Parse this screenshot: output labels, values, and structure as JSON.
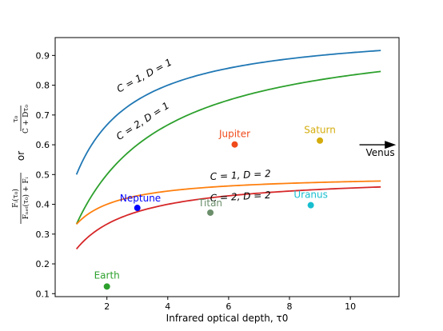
{
  "chart_data": {
    "type": "line",
    "xlabel": "Infrared optical depth, τ0",
    "ylabel": {
      "expr1_num": "τ₀",
      "expr1_den": "C + Dτ₀",
      "or": "or",
      "expr2_num": "Fᵢ(τ₀)",
      "expr2_den": "Fₙₑₜ(τ₀) + Fᵢ"
    },
    "xlim": [
      0.3,
      11.6
    ],
    "ylim": [
      0.09,
      0.96
    ],
    "x_ticks": [
      2,
      4,
      6,
      8,
      10
    ],
    "y_ticks": [
      0.1,
      0.2,
      0.3,
      0.4,
      0.5,
      0.6,
      0.7,
      0.8,
      0.9
    ],
    "grid": false,
    "series": [
      {
        "name": "C = 1, D = 1",
        "C": 1,
        "D": 1,
        "color": "#1f77b4",
        "x_range": [
          1,
          11
        ],
        "x": [
          1,
          2,
          3,
          4,
          5,
          6,
          7,
          8,
          9,
          10,
          11
        ],
        "y": [
          0.5,
          0.667,
          0.75,
          0.8,
          0.833,
          0.857,
          0.875,
          0.889,
          0.9,
          0.909,
          0.917
        ]
      },
      {
        "name": "C = 2, D = 1",
        "C": 2,
        "D": 1,
        "color": "#2ca02c",
        "x_range": [
          1,
          11
        ],
        "x": [
          1,
          2,
          3,
          4,
          5,
          6,
          7,
          8,
          9,
          10,
          11
        ],
        "y": [
          0.333,
          0.5,
          0.6,
          0.667,
          0.714,
          0.75,
          0.778,
          0.8,
          0.818,
          0.833,
          0.846
        ]
      },
      {
        "name": "C = 1, D = 2",
        "C": 1,
        "D": 2,
        "color": "#ff7f0e",
        "x_range": [
          1,
          11
        ],
        "x": [
          1,
          2,
          3,
          4,
          5,
          6,
          7,
          8,
          9,
          10,
          11
        ],
        "y": [
          0.333,
          0.4,
          0.429,
          0.444,
          0.455,
          0.462,
          0.467,
          0.471,
          0.474,
          0.476,
          0.478
        ]
      },
      {
        "name": "C = 2, D = 2",
        "C": 2,
        "D": 2,
        "color": "#d62728",
        "x_range": [
          1,
          11
        ],
        "x": [
          1,
          2,
          3,
          4,
          5,
          6,
          7,
          8,
          9,
          10,
          11
        ],
        "y": [
          0.25,
          0.333,
          0.375,
          0.4,
          0.417,
          0.429,
          0.438,
          0.444,
          0.45,
          0.455,
          0.458
        ]
      }
    ],
    "curve_labels": [
      {
        "text": "C = 1, D = 1",
        "x": 2.4,
        "y": 0.775,
        "angle": -28
      },
      {
        "text": "C = 2, D = 1",
        "x": 2.4,
        "y": 0.615,
        "angle": -33
      },
      {
        "text": "C = 1, D = 2",
        "x": 5.4,
        "y": 0.482,
        "angle": -3
      },
      {
        "text": "C = 2, D = 2",
        "x": 5.4,
        "y": 0.41,
        "angle": -3
      }
    ],
    "points": [
      {
        "name": "Earth",
        "x": 2.0,
        "y": 0.124,
        "color": "#2ca02c",
        "label_x": 2.0,
        "label_y": 0.15
      },
      {
        "name": "Neptune",
        "x": 3.0,
        "y": 0.388,
        "color": "#0000ff",
        "label_x": 3.1,
        "label_y": 0.41
      },
      {
        "name": "Titan",
        "x": 5.4,
        "y": 0.372,
        "color": "#6b8e6b",
        "label_x": 5.4,
        "label_y": 0.394
      },
      {
        "name": "Jupiter",
        "x": 6.2,
        "y": 0.601,
        "color": "#f04a1a",
        "label_x": 6.2,
        "label_y": 0.626
      },
      {
        "name": "Saturn",
        "x": 9.0,
        "y": 0.614,
        "color": "#d4ac0d",
        "label_x": 9.0,
        "label_y": 0.639
      },
      {
        "name": "Uranus",
        "x": 8.7,
        "y": 0.397,
        "color": "#17becf",
        "label_x": 8.7,
        "label_y": 0.422
      }
    ],
    "arrow_annotation": {
      "text": "Venus",
      "x_start": 10.3,
      "x_end": 11.5,
      "y": 0.6,
      "label_y": 0.573
    }
  }
}
